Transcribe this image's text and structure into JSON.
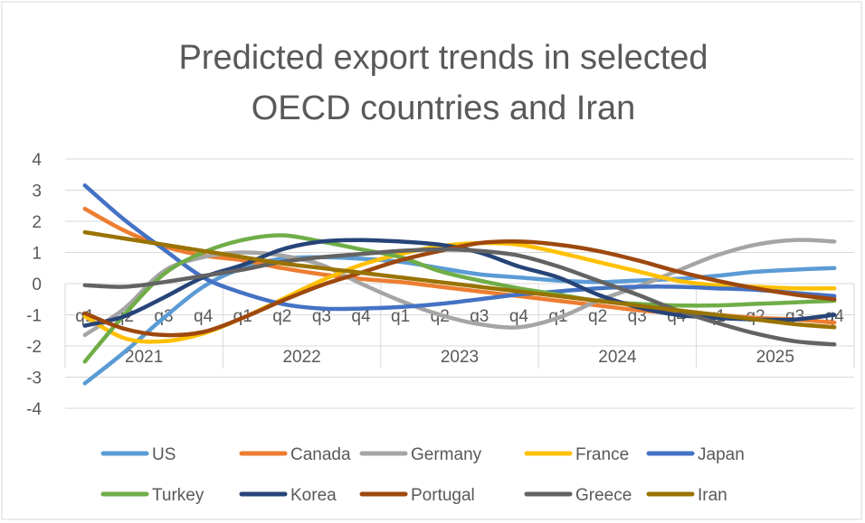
{
  "chart_data": {
    "type": "line",
    "title_lines": [
      "Predicted export trends in selected",
      "OECD countries and Iran"
    ],
    "quarter_labels": [
      "q1",
      "q2",
      "q3",
      "q4",
      "q1",
      "q2",
      "q3",
      "q4",
      "q1",
      "q2",
      "q3",
      "q4",
      "q1",
      "q2",
      "q3",
      "q4",
      "q1",
      "q2",
      "q3",
      "q4"
    ],
    "years": [
      "2021",
      "2022",
      "2023",
      "2024",
      "2025"
    ],
    "y_ticks": [
      4,
      3,
      2,
      1,
      0,
      -1,
      -2,
      -3,
      -4
    ],
    "ylim": [
      -4,
      4
    ],
    "grid": true,
    "legend_position": "bottom",
    "series": [
      {
        "name": "US",
        "color": "#5B9BD5",
        "values": [
          -3.2,
          -2.2,
          -1.1,
          -0.1,
          0.5,
          0.8,
          0.85,
          0.8,
          0.7,
          0.5,
          0.3,
          0.2,
          0.1,
          0.05,
          0.1,
          0.15,
          0.25,
          0.38,
          0.45,
          0.5
        ]
      },
      {
        "name": "Canada",
        "color": "#ED7D31",
        "values": [
          2.4,
          1.7,
          1.2,
          0.9,
          0.75,
          0.5,
          0.3,
          0.15,
          0.05,
          -0.1,
          -0.25,
          -0.4,
          -0.55,
          -0.7,
          -0.85,
          -0.95,
          -1.0,
          -1.1,
          -1.15,
          -1.25
        ]
      },
      {
        "name": "Germany",
        "color": "#A5A5A5",
        "values": [
          -1.65,
          -0.8,
          0.4,
          0.85,
          1.0,
          0.9,
          0.6,
          0.0,
          -0.55,
          -1.0,
          -1.3,
          -1.4,
          -1.1,
          -0.55,
          -0.1,
          0.4,
          0.9,
          1.25,
          1.4,
          1.35
        ]
      },
      {
        "name": "France",
        "color": "#FFC000",
        "values": [
          -1.05,
          -1.75,
          -1.85,
          -1.6,
          -1.1,
          -0.5,
          0.1,
          0.6,
          0.95,
          1.2,
          1.3,
          1.25,
          1.0,
          0.7,
          0.4,
          0.1,
          -0.05,
          -0.1,
          -0.15,
          -0.15
        ]
      },
      {
        "name": "Japan",
        "color": "#4472C4",
        "values": [
          3.15,
          2.05,
          1.1,
          0.2,
          -0.3,
          -0.65,
          -0.8,
          -0.8,
          -0.75,
          -0.65,
          -0.5,
          -0.35,
          -0.25,
          -0.15,
          -0.1,
          -0.1,
          -0.15,
          -0.2,
          -0.3,
          -0.4
        ]
      },
      {
        "name": "Turkey",
        "color": "#70AD47",
        "values": [
          -2.5,
          -1.0,
          0.3,
          1.0,
          1.4,
          1.55,
          1.35,
          1.1,
          0.85,
          0.4,
          0.1,
          -0.15,
          -0.35,
          -0.55,
          -0.65,
          -0.7,
          -0.7,
          -0.65,
          -0.6,
          -0.55
        ]
      },
      {
        "name": "Korea",
        "color": "#264478",
        "values": [
          -1.35,
          -1.05,
          -0.45,
          0.2,
          0.6,
          1.1,
          1.35,
          1.4,
          1.35,
          1.25,
          1.0,
          0.55,
          0.2,
          -0.35,
          -0.75,
          -1.0,
          -1.1,
          -1.15,
          -1.15,
          -1.0
        ]
      },
      {
        "name": "Portugal",
        "color": "#9E480E",
        "values": [
          -0.95,
          -1.45,
          -1.65,
          -1.55,
          -1.1,
          -0.55,
          -0.05,
          0.35,
          0.75,
          1.05,
          1.3,
          1.35,
          1.25,
          1.05,
          0.75,
          0.4,
          0.1,
          -0.15,
          -0.35,
          -0.5
        ]
      },
      {
        "name": "Greece",
        "color": "#636363",
        "values": [
          -0.05,
          -0.1,
          0.05,
          0.25,
          0.45,
          0.7,
          0.85,
          0.95,
          1.05,
          1.1,
          1.05,
          0.9,
          0.55,
          0.1,
          -0.35,
          -0.85,
          -1.25,
          -1.6,
          -1.85,
          -1.95
        ]
      },
      {
        "name": "Iran",
        "color": "#997300",
        "values": [
          1.65,
          1.45,
          1.25,
          1.05,
          0.85,
          0.65,
          0.5,
          0.35,
          0.2,
          0.05,
          -0.1,
          -0.25,
          -0.4,
          -0.55,
          -0.7,
          -0.85,
          -1.0,
          -1.15,
          -1.3,
          -1.4
        ]
      }
    ]
  }
}
